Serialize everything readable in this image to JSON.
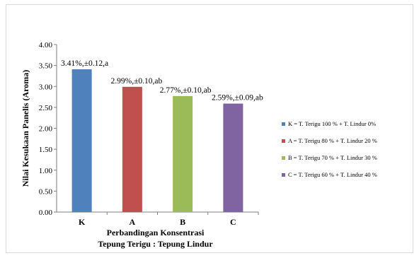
{
  "chart_data": {
    "type": "bar",
    "title": "",
    "categories": [
      "K",
      "A",
      "B",
      "C"
    ],
    "values": [
      3.41,
      2.99,
      2.77,
      2.59
    ],
    "data_labels": [
      "3.41%,±0.12,a",
      "2.99%,±0.10,ab",
      "2.77%,±0.10,ab",
      "2.59%,±0.09,ab"
    ],
    "colors": [
      "#4f81bd",
      "#c0504d",
      "#9bbb59",
      "#8064a2"
    ],
    "ylabel": "Nilai Kesukaan Panelis (Aroma)",
    "xlabel_lines": [
      "Perbandingan Konsentrasi",
      "Tepung Terigu : Tepung Lindur"
    ],
    "ylim": [
      0,
      4
    ],
    "yticks": [
      "0.00",
      "0.50",
      "1.00",
      "1.50",
      "2.00",
      "2.50",
      "3.00",
      "3.50",
      "4.00"
    ],
    "grid": false,
    "legend_position": "right",
    "legend": [
      "K = T. Terigu 100 % + T. Lindur 0%",
      "A = T. Terigu 80 % + T. Lindur 20 %",
      "B = T. Terigu 70 % + T. Lindur 30 %",
      "C = T. Terigu 60 % + T. Lindur 40 %"
    ]
  }
}
